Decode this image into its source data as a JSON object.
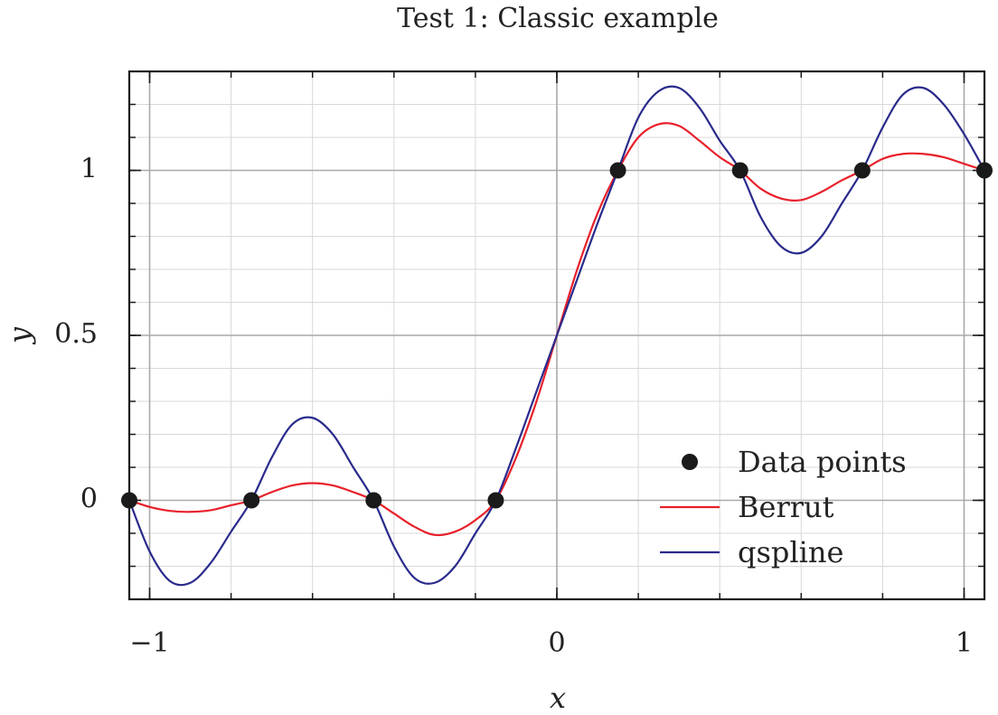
{
  "chart_data": {
    "type": "line",
    "title": "Test 1:  Classic example",
    "xlabel": "x",
    "ylabel": "y",
    "xlim": [
      -1.05,
      1.05
    ],
    "ylim": [
      -0.3,
      1.3
    ],
    "x_ticks": [
      {
        "value": -1,
        "label": "−1"
      },
      {
        "value": 0,
        "label": "0"
      },
      {
        "value": 1,
        "label": "1"
      }
    ],
    "y_ticks": [
      {
        "value": 0,
        "label": "0"
      },
      {
        "value": 0.5,
        "label": "0.5"
      },
      {
        "value": 1,
        "label": "1"
      }
    ],
    "grid": true,
    "legend_position": "bottom-right",
    "data_points": {
      "name": "Data points",
      "color": "#1a1a1a",
      "x": [
        -1.05,
        -0.75,
        -0.45,
        -0.15,
        0.15,
        0.45,
        0.75,
        1.05
      ],
      "y": [
        0,
        0,
        0,
        0,
        1,
        1,
        1,
        1
      ]
    },
    "series": [
      {
        "name": "Berrut",
        "color": "#e8202a",
        "x": [
          -1.05,
          -1.0,
          -0.95,
          -0.9,
          -0.85,
          -0.8,
          -0.75,
          -0.7,
          -0.65,
          -0.6,
          -0.55,
          -0.5,
          -0.45,
          -0.4,
          -0.35,
          -0.3,
          -0.25,
          -0.2,
          -0.15,
          -0.1,
          -0.05,
          0.0,
          0.05,
          0.1,
          0.15,
          0.2,
          0.25,
          0.3,
          0.35,
          0.4,
          0.45,
          0.5,
          0.55,
          0.6,
          0.65,
          0.7,
          0.75,
          0.8,
          0.85,
          0.9,
          0.95,
          1.0,
          1.05
        ],
        "y": [
          0,
          -0.02,
          -0.032,
          -0.035,
          -0.03,
          -0.015,
          0,
          0.025,
          0.045,
          0.052,
          0.045,
          0.025,
          0,
          -0.04,
          -0.08,
          -0.105,
          -0.095,
          -0.06,
          0,
          0.13,
          0.3,
          0.5,
          0.7,
          0.87,
          1.0,
          1.1,
          1.14,
          1.135,
          1.09,
          1.04,
          1.0,
          0.945,
          0.915,
          0.91,
          0.935,
          0.97,
          1.0,
          1.035,
          1.05,
          1.05,
          1.04,
          1.02,
          1.0
        ]
      },
      {
        "name": "qspline",
        "color": "#2a2a8c",
        "x": [
          -1.05,
          -1.0,
          -0.95,
          -0.9,
          -0.85,
          -0.8,
          -0.75,
          -0.7,
          -0.65,
          -0.6,
          -0.55,
          -0.5,
          -0.45,
          -0.4,
          -0.35,
          -0.3,
          -0.25,
          -0.2,
          -0.15,
          -0.1,
          -0.05,
          0.0,
          0.05,
          0.1,
          0.15,
          0.2,
          0.25,
          0.3,
          0.35,
          0.4,
          0.45,
          0.5,
          0.55,
          0.6,
          0.65,
          0.7,
          0.75,
          0.8,
          0.85,
          0.9,
          0.95,
          1.0,
          1.05
        ],
        "y": [
          0,
          -0.155,
          -0.245,
          -0.25,
          -0.19,
          -0.095,
          0,
          0.13,
          0.23,
          0.25,
          0.2,
          0.1,
          0,
          -0.14,
          -0.235,
          -0.25,
          -0.2,
          -0.1,
          0,
          0.16,
          0.33,
          0.5,
          0.67,
          0.84,
          1.0,
          1.16,
          1.24,
          1.25,
          1.19,
          1.09,
          1.0,
          0.86,
          0.77,
          0.75,
          0.8,
          0.9,
          1.0,
          1.13,
          1.23,
          1.25,
          1.2,
          1.11,
          1.0
        ]
      }
    ]
  }
}
